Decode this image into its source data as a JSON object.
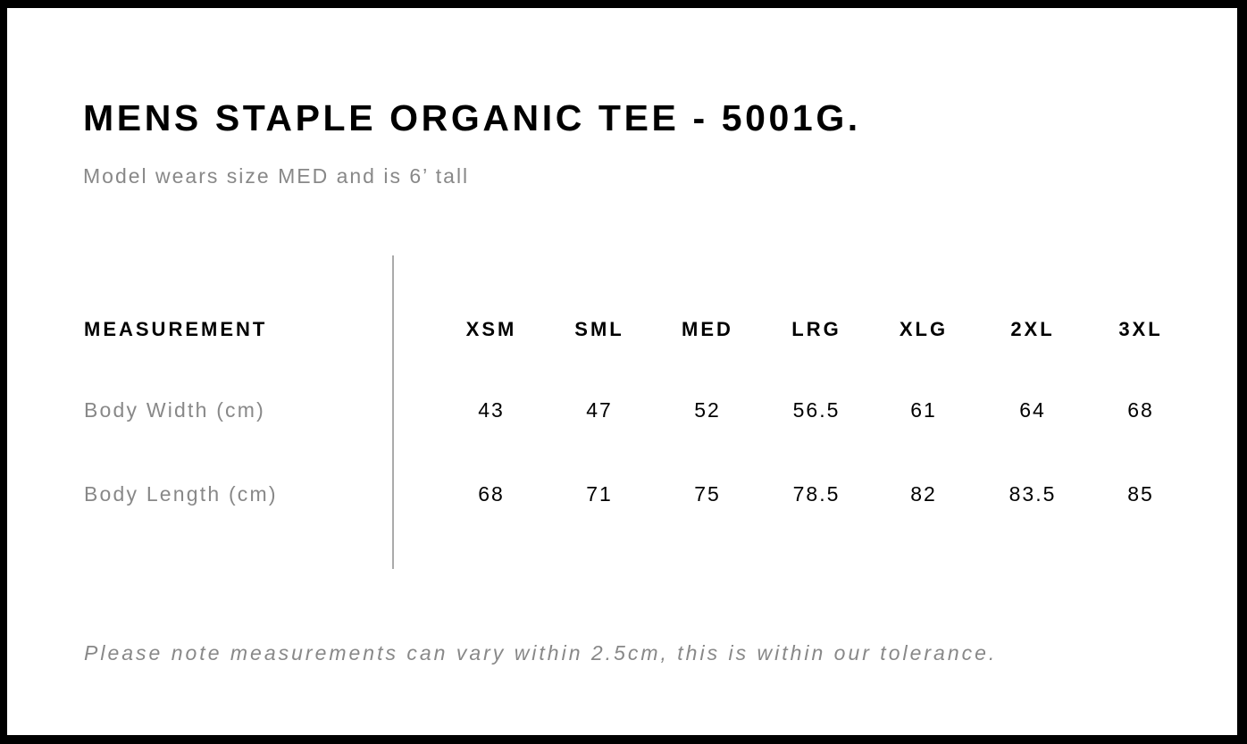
{
  "title": "MENS STAPLE ORGANIC TEE - 5001G.",
  "subtitle": "Model wears size MED and is 6’ tall",
  "table": {
    "header_label": "MEASUREMENT",
    "sizes": [
      "XSM",
      "SML",
      "MED",
      "LRG",
      "XLG",
      "2XL",
      "3XL"
    ],
    "rows": [
      {
        "label": "Body Width (cm)",
        "values": [
          "43",
          "47",
          "52",
          "56.5",
          "61",
          "64",
          "68"
        ]
      },
      {
        "label": "Body Length (cm)",
        "values": [
          "68",
          "71",
          "75",
          "78.5",
          "82",
          "83.5",
          "85"
        ]
      }
    ]
  },
  "note": "Please note measurements can vary within 2.5cm, this is within our tolerance.",
  "colors": {
    "frame": "#000000",
    "muted_text": "#888888",
    "divider": "#aaaaaa"
  }
}
